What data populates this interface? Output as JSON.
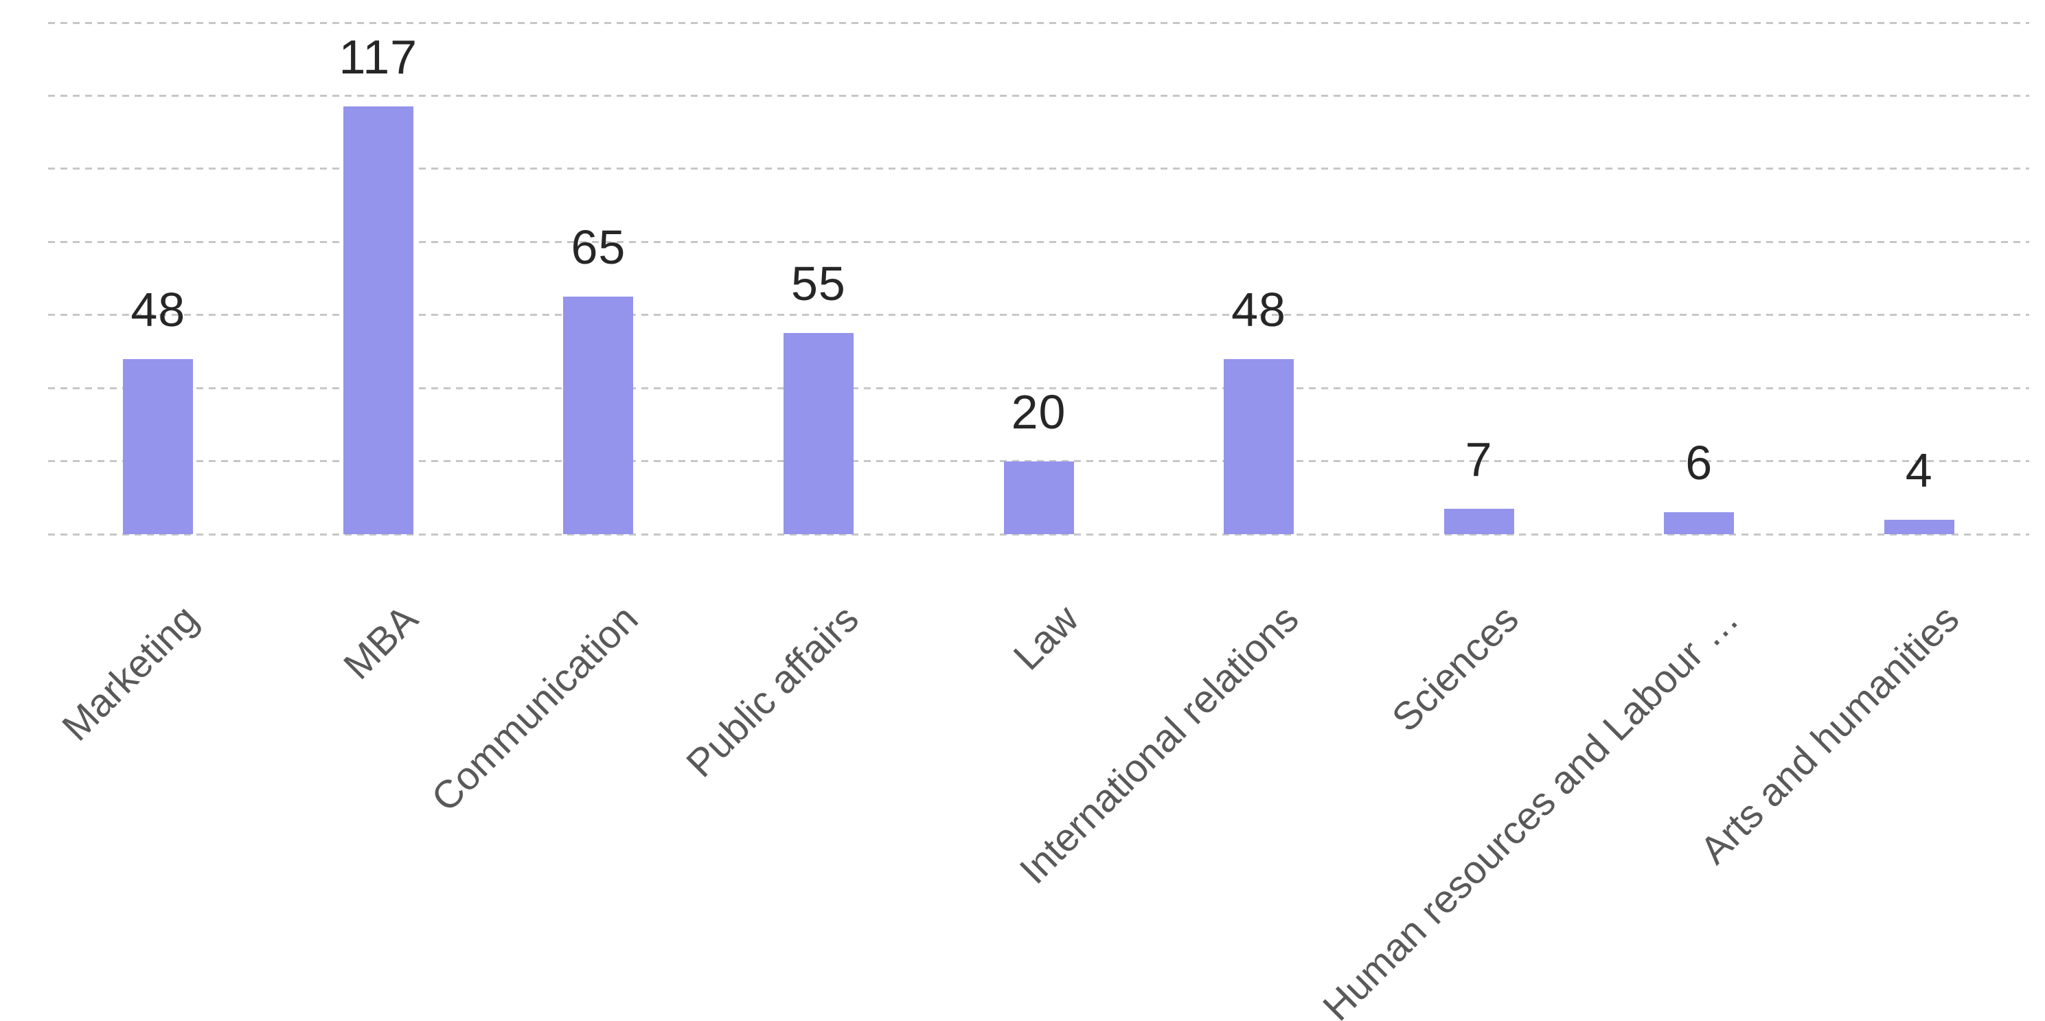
{
  "chart_data": {
    "type": "bar",
    "title": "",
    "xlabel": "",
    "ylabel": "",
    "categories": [
      "Marketing",
      "MBA",
      "Communication",
      "Public affairs",
      "Law",
      "International relations",
      "Sciences",
      "Human resources and Labour …",
      "Arts and humanities"
    ],
    "values": [
      48,
      117,
      65,
      55,
      20,
      48,
      7,
      6,
      4
    ],
    "value_labels": [
      "48",
      "117",
      "65",
      "55",
      "20",
      "48",
      "7",
      "6",
      "4"
    ],
    "ylim": [
      0,
      140
    ],
    "gridline_step": 20,
    "grid": true,
    "gridline_style": "dashed",
    "legend": false,
    "y_axis_tick_labels_visible": false,
    "category_label_rotation_deg": 45,
    "colors": {
      "bar_fill": "#9494EC",
      "gridline": "#C7C7C7",
      "value_label": "#262626",
      "category_label": "#595959",
      "background": "#FFFFFF"
    }
  }
}
